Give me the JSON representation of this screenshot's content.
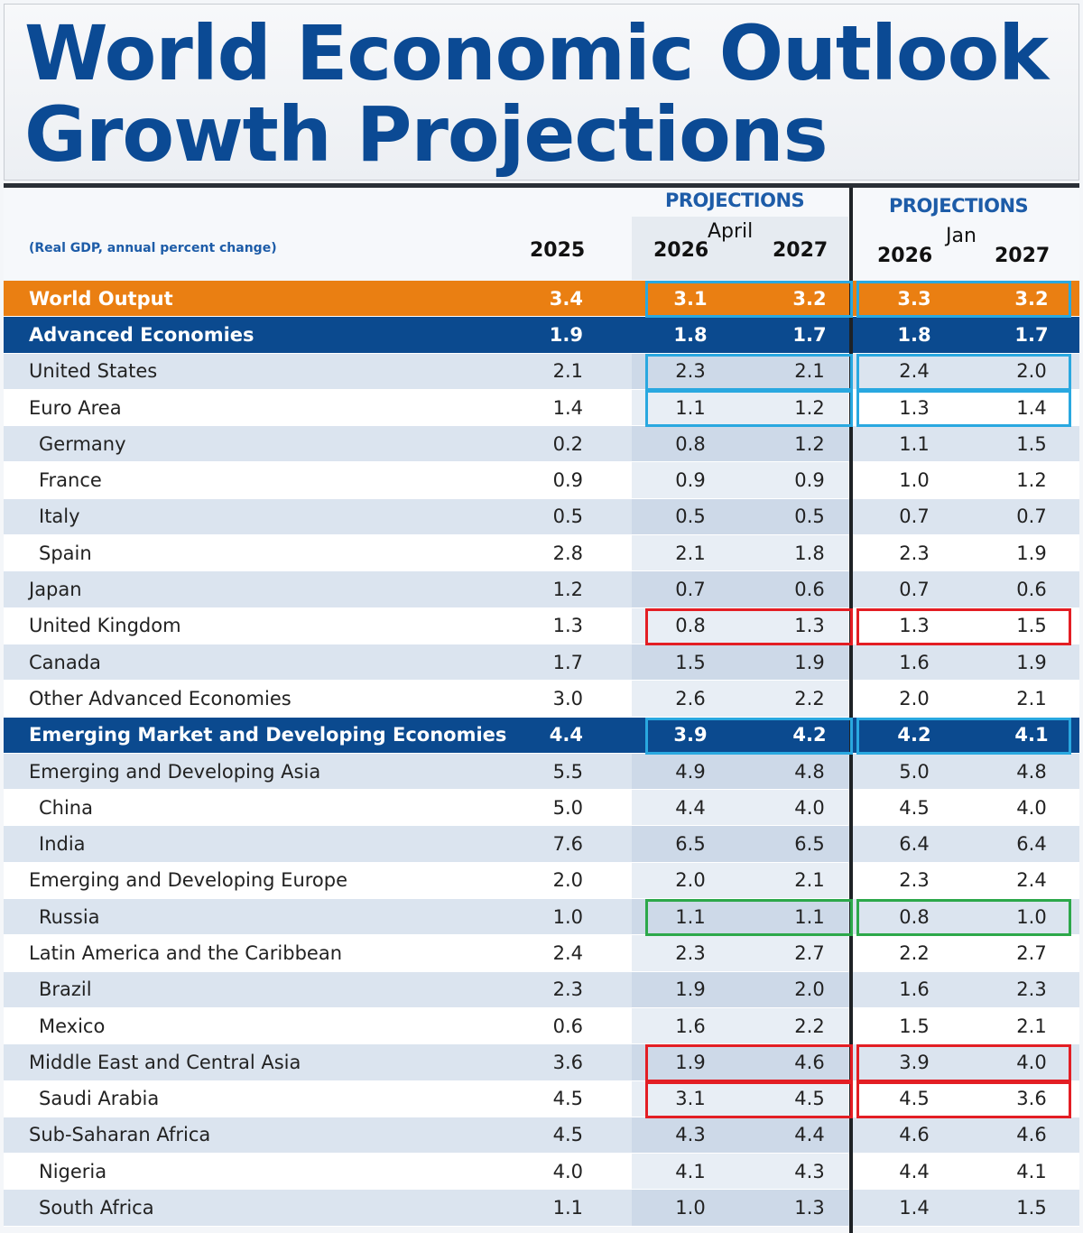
{
  "title": {
    "line1": "World Economic Outlook",
    "line2": "Growth Projections"
  },
  "header": {
    "units": "(Real GDP, annual percent change)",
    "col_2025": "2025",
    "april_projections": "PROJECTIONS",
    "april_label": "April",
    "april_2026": "2026",
    "april_2027": "2027",
    "jan_projections": "PROJECTIONS",
    "jan_label": "Jan",
    "jan_2026": "2026",
    "jan_2027": "2027"
  },
  "colors": {
    "title": "#0b4a94",
    "world": "#ea7f12",
    "group": "#0b4a8f",
    "highlight_cyan": "#29a8e0",
    "highlight_red": "#e31e24",
    "highlight_green": "#2ca84a"
  },
  "chart_data": {
    "type": "table",
    "columns": [
      "",
      "2025",
      "April 2026",
      "April 2027",
      "Jan 2026",
      "Jan 2027"
    ],
    "rows": [
      {
        "name": "World Output",
        "style": "world",
        "v": [
          "3.4",
          "3.1",
          "3.2",
          "3.3",
          "3.2"
        ],
        "highlight": "cyan"
      },
      {
        "name": "Advanced Economies",
        "style": "blue",
        "v": [
          "1.9",
          "1.8",
          "1.7",
          "1.8",
          "1.7"
        ]
      },
      {
        "name": "United States",
        "style": "light",
        "v": [
          "2.1",
          "2.3",
          "2.1",
          "2.4",
          "2.0"
        ],
        "highlight": "cyan"
      },
      {
        "name": "Euro Area",
        "style": "white",
        "v": [
          "1.4",
          "1.1",
          "1.2",
          "1.3",
          "1.4"
        ],
        "highlight": "cyan"
      },
      {
        "name": "Germany",
        "style": "light",
        "indent": true,
        "v": [
          "0.2",
          "0.8",
          "1.2",
          "1.1",
          "1.5"
        ]
      },
      {
        "name": "France",
        "style": "white",
        "indent": true,
        "v": [
          "0.9",
          "0.9",
          "0.9",
          "1.0",
          "1.2"
        ]
      },
      {
        "name": "Italy",
        "style": "light",
        "indent": true,
        "v": [
          "0.5",
          "0.5",
          "0.5",
          "0.7",
          "0.7"
        ]
      },
      {
        "name": "Spain",
        "style": "white",
        "indent": true,
        "v": [
          "2.8",
          "2.1",
          "1.8",
          "2.3",
          "1.9"
        ]
      },
      {
        "name": "Japan",
        "style": "light",
        "v": [
          "1.2",
          "0.7",
          "0.6",
          "0.7",
          "0.6"
        ]
      },
      {
        "name": "United Kingdom",
        "style": "white",
        "v": [
          "1.3",
          "0.8",
          "1.3",
          "1.3",
          "1.5"
        ],
        "highlight": "red"
      },
      {
        "name": "Canada",
        "style": "light",
        "v": [
          "1.7",
          "1.5",
          "1.9",
          "1.6",
          "1.9"
        ]
      },
      {
        "name": "Other Advanced Economies",
        "style": "white",
        "v": [
          "3.0",
          "2.6",
          "2.2",
          "2.0",
          "2.1"
        ]
      },
      {
        "name": "Emerging Market and Developing Economies",
        "style": "blue",
        "v": [
          "4.4",
          "3.9",
          "4.2",
          "4.2",
          "4.1"
        ],
        "highlight": "cyan"
      },
      {
        "name": "Emerging and Developing Asia",
        "style": "light",
        "v": [
          "5.5",
          "4.9",
          "4.8",
          "5.0",
          "4.8"
        ]
      },
      {
        "name": "China",
        "style": "white",
        "indent": true,
        "v": [
          "5.0",
          "4.4",
          "4.0",
          "4.5",
          "4.0"
        ]
      },
      {
        "name": "India",
        "style": "light",
        "indent": true,
        "v": [
          "7.6",
          "6.5",
          "6.5",
          "6.4",
          "6.4"
        ]
      },
      {
        "name": "Emerging and Developing Europe",
        "style": "white",
        "v": [
          "2.0",
          "2.0",
          "2.1",
          "2.3",
          "2.4"
        ]
      },
      {
        "name": "Russia",
        "style": "light",
        "indent": true,
        "v": [
          "1.0",
          "1.1",
          "1.1",
          "0.8",
          "1.0"
        ],
        "highlight": "green"
      },
      {
        "name": "Latin America and the Caribbean",
        "style": "white",
        "v": [
          "2.4",
          "2.3",
          "2.7",
          "2.2",
          "2.7"
        ]
      },
      {
        "name": "Brazil",
        "style": "light",
        "indent": true,
        "v": [
          "2.3",
          "1.9",
          "2.0",
          "1.6",
          "2.3"
        ]
      },
      {
        "name": "Mexico",
        "style": "white",
        "indent": true,
        "v": [
          "0.6",
          "1.6",
          "2.2",
          "1.5",
          "2.1"
        ]
      },
      {
        "name": "Middle East and Central Asia",
        "style": "light",
        "v": [
          "3.6",
          "1.9",
          "4.6",
          "3.9",
          "4.0"
        ],
        "highlight": "red"
      },
      {
        "name": "Saudi Arabia",
        "style": "white",
        "indent": true,
        "v": [
          "4.5",
          "3.1",
          "4.5",
          "4.5",
          "3.6"
        ],
        "highlight": "red"
      },
      {
        "name": "Sub-Saharan Africa",
        "style": "light",
        "v": [
          "4.5",
          "4.3",
          "4.4",
          "4.6",
          "4.6"
        ]
      },
      {
        "name": "Nigeria",
        "style": "white",
        "indent": true,
        "v": [
          "4.0",
          "4.1",
          "4.3",
          "4.4",
          "4.1"
        ]
      },
      {
        "name": "South Africa",
        "style": "light",
        "indent": true,
        "v": [
          "1.1",
          "1.0",
          "1.3",
          "1.4",
          "1.5"
        ]
      }
    ]
  }
}
